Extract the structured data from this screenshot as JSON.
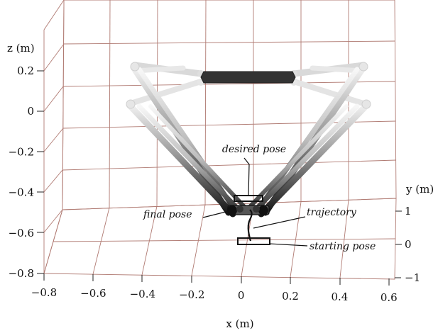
{
  "chart_data": {
    "type": "scatter",
    "title": "",
    "xlabel": "x (m)",
    "ylabel": "y (m)",
    "zlabel": "z (m)",
    "xlim": [
      -0.8,
      0.6
    ],
    "ylim": [
      -1,
      1
    ],
    "zlim": [
      -0.8,
      0.2
    ],
    "x_ticks": [
      "−0.8",
      "−0.6",
      "−0.4",
      "−0.2",
      "0",
      "0.2",
      "0.4",
      "0.6"
    ],
    "y_ticks": [
      "1",
      "0",
      "−1"
    ],
    "z_ticks": [
      "0.2",
      "0",
      "−0.2",
      "−0.4",
      "−0.6",
      "−0.8"
    ],
    "grid": true,
    "annotations": {
      "desired_pose": "desired pose",
      "final_pose": "final pose",
      "trajectory": "trajectory",
      "starting_pose": "starting pose"
    },
    "colors": {
      "grid": "#b07a72",
      "base_platform": "#333333",
      "arm_dark": "#222222",
      "arm_light": "#eeeeee"
    }
  }
}
